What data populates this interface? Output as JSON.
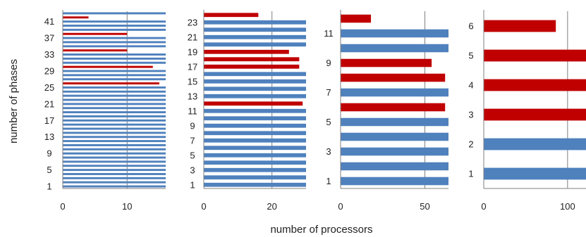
{
  "figure": {
    "ylabel": "number of phases",
    "xlabel": "number of processors"
  },
  "colors": {
    "blue": "#4f81bd",
    "red": "#c00000",
    "grid": "#7f7f7f",
    "axis": "#7f7f7f"
  },
  "chart_data": [
    {
      "type": "bar",
      "orientation": "horizontal",
      "panel": 1,
      "categories": [
        1,
        2,
        3,
        4,
        5,
        6,
        7,
        8,
        9,
        10,
        11,
        12,
        13,
        14,
        15,
        16,
        17,
        18,
        19,
        20,
        21,
        22,
        23,
        24,
        25,
        26,
        27,
        28,
        29,
        30,
        31,
        32,
        33,
        34,
        35,
        36,
        37,
        38,
        39,
        40,
        41,
        42,
        43
      ],
      "values": [
        16,
        16,
        16,
        16,
        16,
        16,
        16,
        16,
        16,
        16,
        16,
        16,
        16,
        16,
        16,
        16,
        16,
        16,
        16,
        16,
        16,
        16,
        16,
        16,
        16,
        15,
        16,
        16,
        16,
        14,
        16,
        16,
        16,
        10,
        16,
        16,
        16,
        10,
        16,
        16,
        16,
        4,
        16
      ],
      "highlight": [
        26,
        30,
        34,
        38,
        42
      ],
      "ytick_labels": [
        "1",
        "5",
        "9",
        "13",
        "17",
        "21",
        "25",
        "29",
        "33",
        "37",
        "41"
      ],
      "xticks": [
        0,
        10
      ],
      "xlim": [
        0,
        16
      ]
    },
    {
      "type": "bar",
      "orientation": "horizontal",
      "panel": 2,
      "categories": [
        1,
        2,
        3,
        4,
        5,
        6,
        7,
        8,
        9,
        10,
        11,
        12,
        13,
        14,
        15,
        16,
        17,
        18,
        19,
        20,
        21,
        22,
        23,
        24
      ],
      "values": [
        30,
        30,
        30,
        30,
        30,
        30,
        30,
        30,
        30,
        30,
        30,
        29,
        30,
        30,
        30,
        30,
        28,
        28,
        25,
        30,
        30,
        30,
        30,
        16
      ],
      "highlight": [
        12,
        17,
        18,
        19,
        24
      ],
      "ytick_labels": [
        "1",
        "3",
        "5",
        "7",
        "9",
        "11",
        "13",
        "15",
        "17",
        "19",
        "21",
        "23"
      ],
      "xticks": [
        0,
        20
      ],
      "xlim": [
        0,
        30
      ]
    },
    {
      "type": "bar",
      "orientation": "horizontal",
      "panel": 3,
      "categories": [
        1,
        2,
        3,
        4,
        5,
        6,
        7,
        8,
        9,
        10,
        11,
        12
      ],
      "values": [
        64,
        64,
        64,
        64,
        64,
        62,
        64,
        62,
        54,
        64,
        64,
        18
      ],
      "highlight": [
        6,
        8,
        9,
        12
      ],
      "ytick_labels": [
        "1",
        "3",
        "5",
        "7",
        "9",
        "11"
      ],
      "xticks": [
        0,
        50
      ],
      "xlim": [
        0,
        64
      ]
    },
    {
      "type": "bar",
      "orientation": "horizontal",
      "panel": 4,
      "categories": [
        1,
        2,
        3,
        4,
        5,
        6
      ],
      "values": [
        128,
        128,
        128,
        128,
        128,
        86
      ],
      "highlight": [
        3,
        4,
        5,
        6
      ],
      "ytick_labels": [
        "1",
        "2",
        "3",
        "4",
        "5",
        "6"
      ],
      "xticks": [
        0,
        100
      ],
      "xlim": [
        0,
        122
      ]
    }
  ]
}
